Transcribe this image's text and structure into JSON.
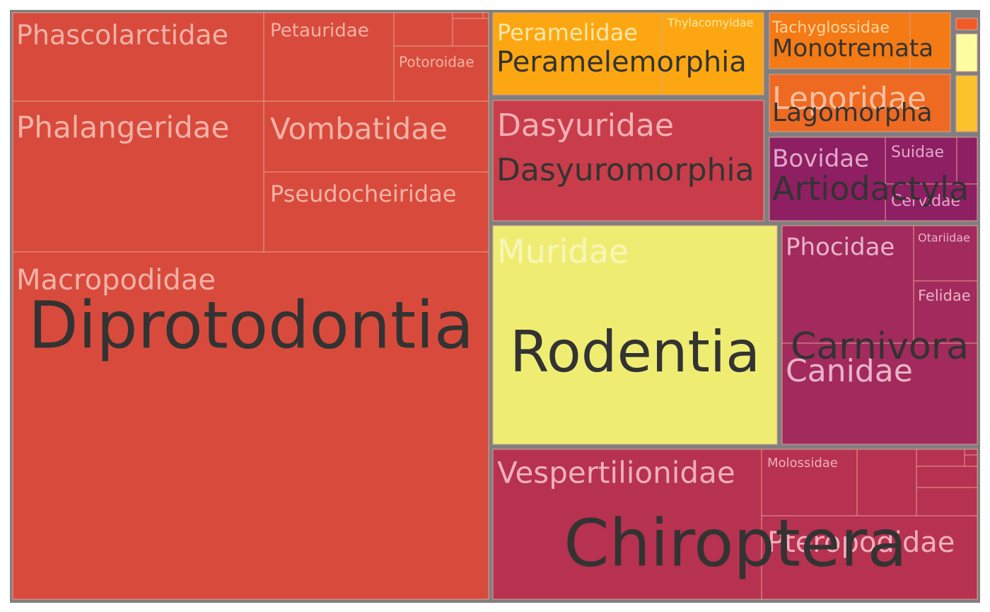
{
  "chart_data": {
    "type": "treemap",
    "colors": {
      "background": "#7f7f7f",
      "divider": "#e0a090",
      "order_label": "#333333"
    },
    "groups": [
      {
        "name": "Diprotodontia",
        "color": "#d84b3c",
        "family_label_color": "#f2b2a8",
        "families": [
          {
            "name": "Phascolarctidae"
          },
          {
            "name": "Petauridae"
          },
          {
            "name": "Potoroidae"
          },
          {
            "name": ""
          },
          {
            "name": ""
          },
          {
            "name": ""
          },
          {
            "name": ""
          },
          {
            "name": "Phalangeridae"
          },
          {
            "name": "Vombatidae"
          },
          {
            "name": "Pseudocheiridae"
          },
          {
            "name": "Macropodidae"
          }
        ]
      },
      {
        "name": "Peramelemorphia",
        "color": "#fca712",
        "family_label_color": "#fde7a8",
        "families": [
          {
            "name": "Peramelidae"
          },
          {
            "name": "Thylacomyidae"
          }
        ]
      },
      {
        "name": "Monotremata",
        "color": "#f37a14",
        "family_label_color": "#fcd4a0",
        "families": [
          {
            "name": "Tachyglossidae"
          },
          {
            "name": ""
          }
        ]
      },
      {
        "name": "",
        "color": "#fdfda0",
        "family_label_color": "#fdfda0",
        "families": [
          {
            "name": ""
          }
        ]
      },
      {
        "name": "",
        "color": "#f05a28",
        "family_label_color": "#f05a28",
        "families": [
          {
            "name": ""
          }
        ]
      },
      {
        "name": "",
        "color": "#fcc22c",
        "family_label_color": "#fcc22c",
        "families": [
          {
            "name": ""
          }
        ]
      },
      {
        "name": "Dasyuromorphia",
        "color": "#c93d4a",
        "family_label_color": "#f2b0b5",
        "families": [
          {
            "name": "Dasyuridae"
          }
        ]
      },
      {
        "name": "Lagomorpha",
        "color": "#ee6a22",
        "family_label_color": "#fac0a0",
        "families": [
          {
            "name": "Leporidae"
          }
        ]
      },
      {
        "name": "Artiodactyla",
        "color": "#8e1f63",
        "family_label_color": "#e2a8c8",
        "families": [
          {
            "name": "Bovidae"
          },
          {
            "name": "Suidae"
          },
          {
            "name": ""
          },
          {
            "name": "Cervidae"
          }
        ]
      },
      {
        "name": "Rodentia",
        "color": "#eeed72",
        "family_label_color": "#f8f6b8",
        "families": [
          {
            "name": "Muridae"
          }
        ]
      },
      {
        "name": "Carnivora",
        "color": "#a32a5c",
        "family_label_color": "#e8b4c8",
        "families": [
          {
            "name": "Phocidae"
          },
          {
            "name": "Otariidae"
          },
          {
            "name": "Felidae"
          },
          {
            "name": "Canidae"
          }
        ]
      },
      {
        "name": "Chiroptera",
        "color": "#b73150",
        "family_label_color": "#eeb0bc",
        "families": [
          {
            "name": "Vespertilionidae"
          },
          {
            "name": "Molossidae"
          },
          {
            "name": ""
          },
          {
            "name": ""
          },
          {
            "name": ""
          },
          {
            "name": ""
          },
          {
            "name": ""
          },
          {
            "name": ""
          },
          {
            "name": "Pteropodidae"
          }
        ]
      }
    ]
  }
}
